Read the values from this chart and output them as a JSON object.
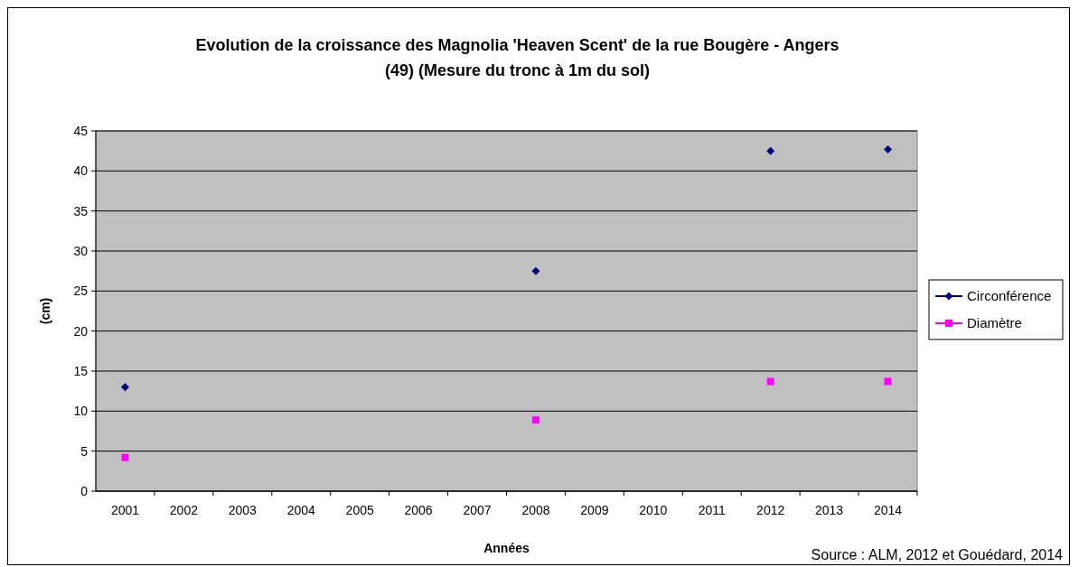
{
  "chart_data": {
    "type": "scatter",
    "title": "Evolution de la croissance des Magnolia 'Heaven Scent' de la rue Bougère - Angers (49) (Mesure du tronc à 1m du sol)",
    "xlabel": "Années",
    "ylabel": "(cm)",
    "categories": [
      "2001",
      "2002",
      "2003",
      "2004",
      "2005",
      "2006",
      "2007",
      "2008",
      "2009",
      "2010",
      "2011",
      "2012",
      "2013",
      "2014"
    ],
    "series": [
      {
        "name": "Circonférence",
        "color": "#000080",
        "marker": "diamond",
        "values": [
          13,
          null,
          null,
          null,
          null,
          null,
          null,
          27.5,
          null,
          null,
          null,
          42.5,
          null,
          42.7
        ]
      },
      {
        "name": "Diamètre",
        "color": "#ff00ff",
        "marker": "square",
        "values": [
          4.2,
          null,
          null,
          null,
          null,
          null,
          null,
          8.9,
          null,
          null,
          null,
          13.7,
          null,
          13.7
        ]
      }
    ],
    "ylim": [
      0,
      45
    ],
    "yticks": [
      0,
      5,
      10,
      15,
      20,
      25,
      30,
      35,
      40,
      45
    ],
    "grid": "y",
    "legend": "right",
    "annotations": [
      "Source : ALM, 2012 et Gouédard, 2014"
    ]
  }
}
